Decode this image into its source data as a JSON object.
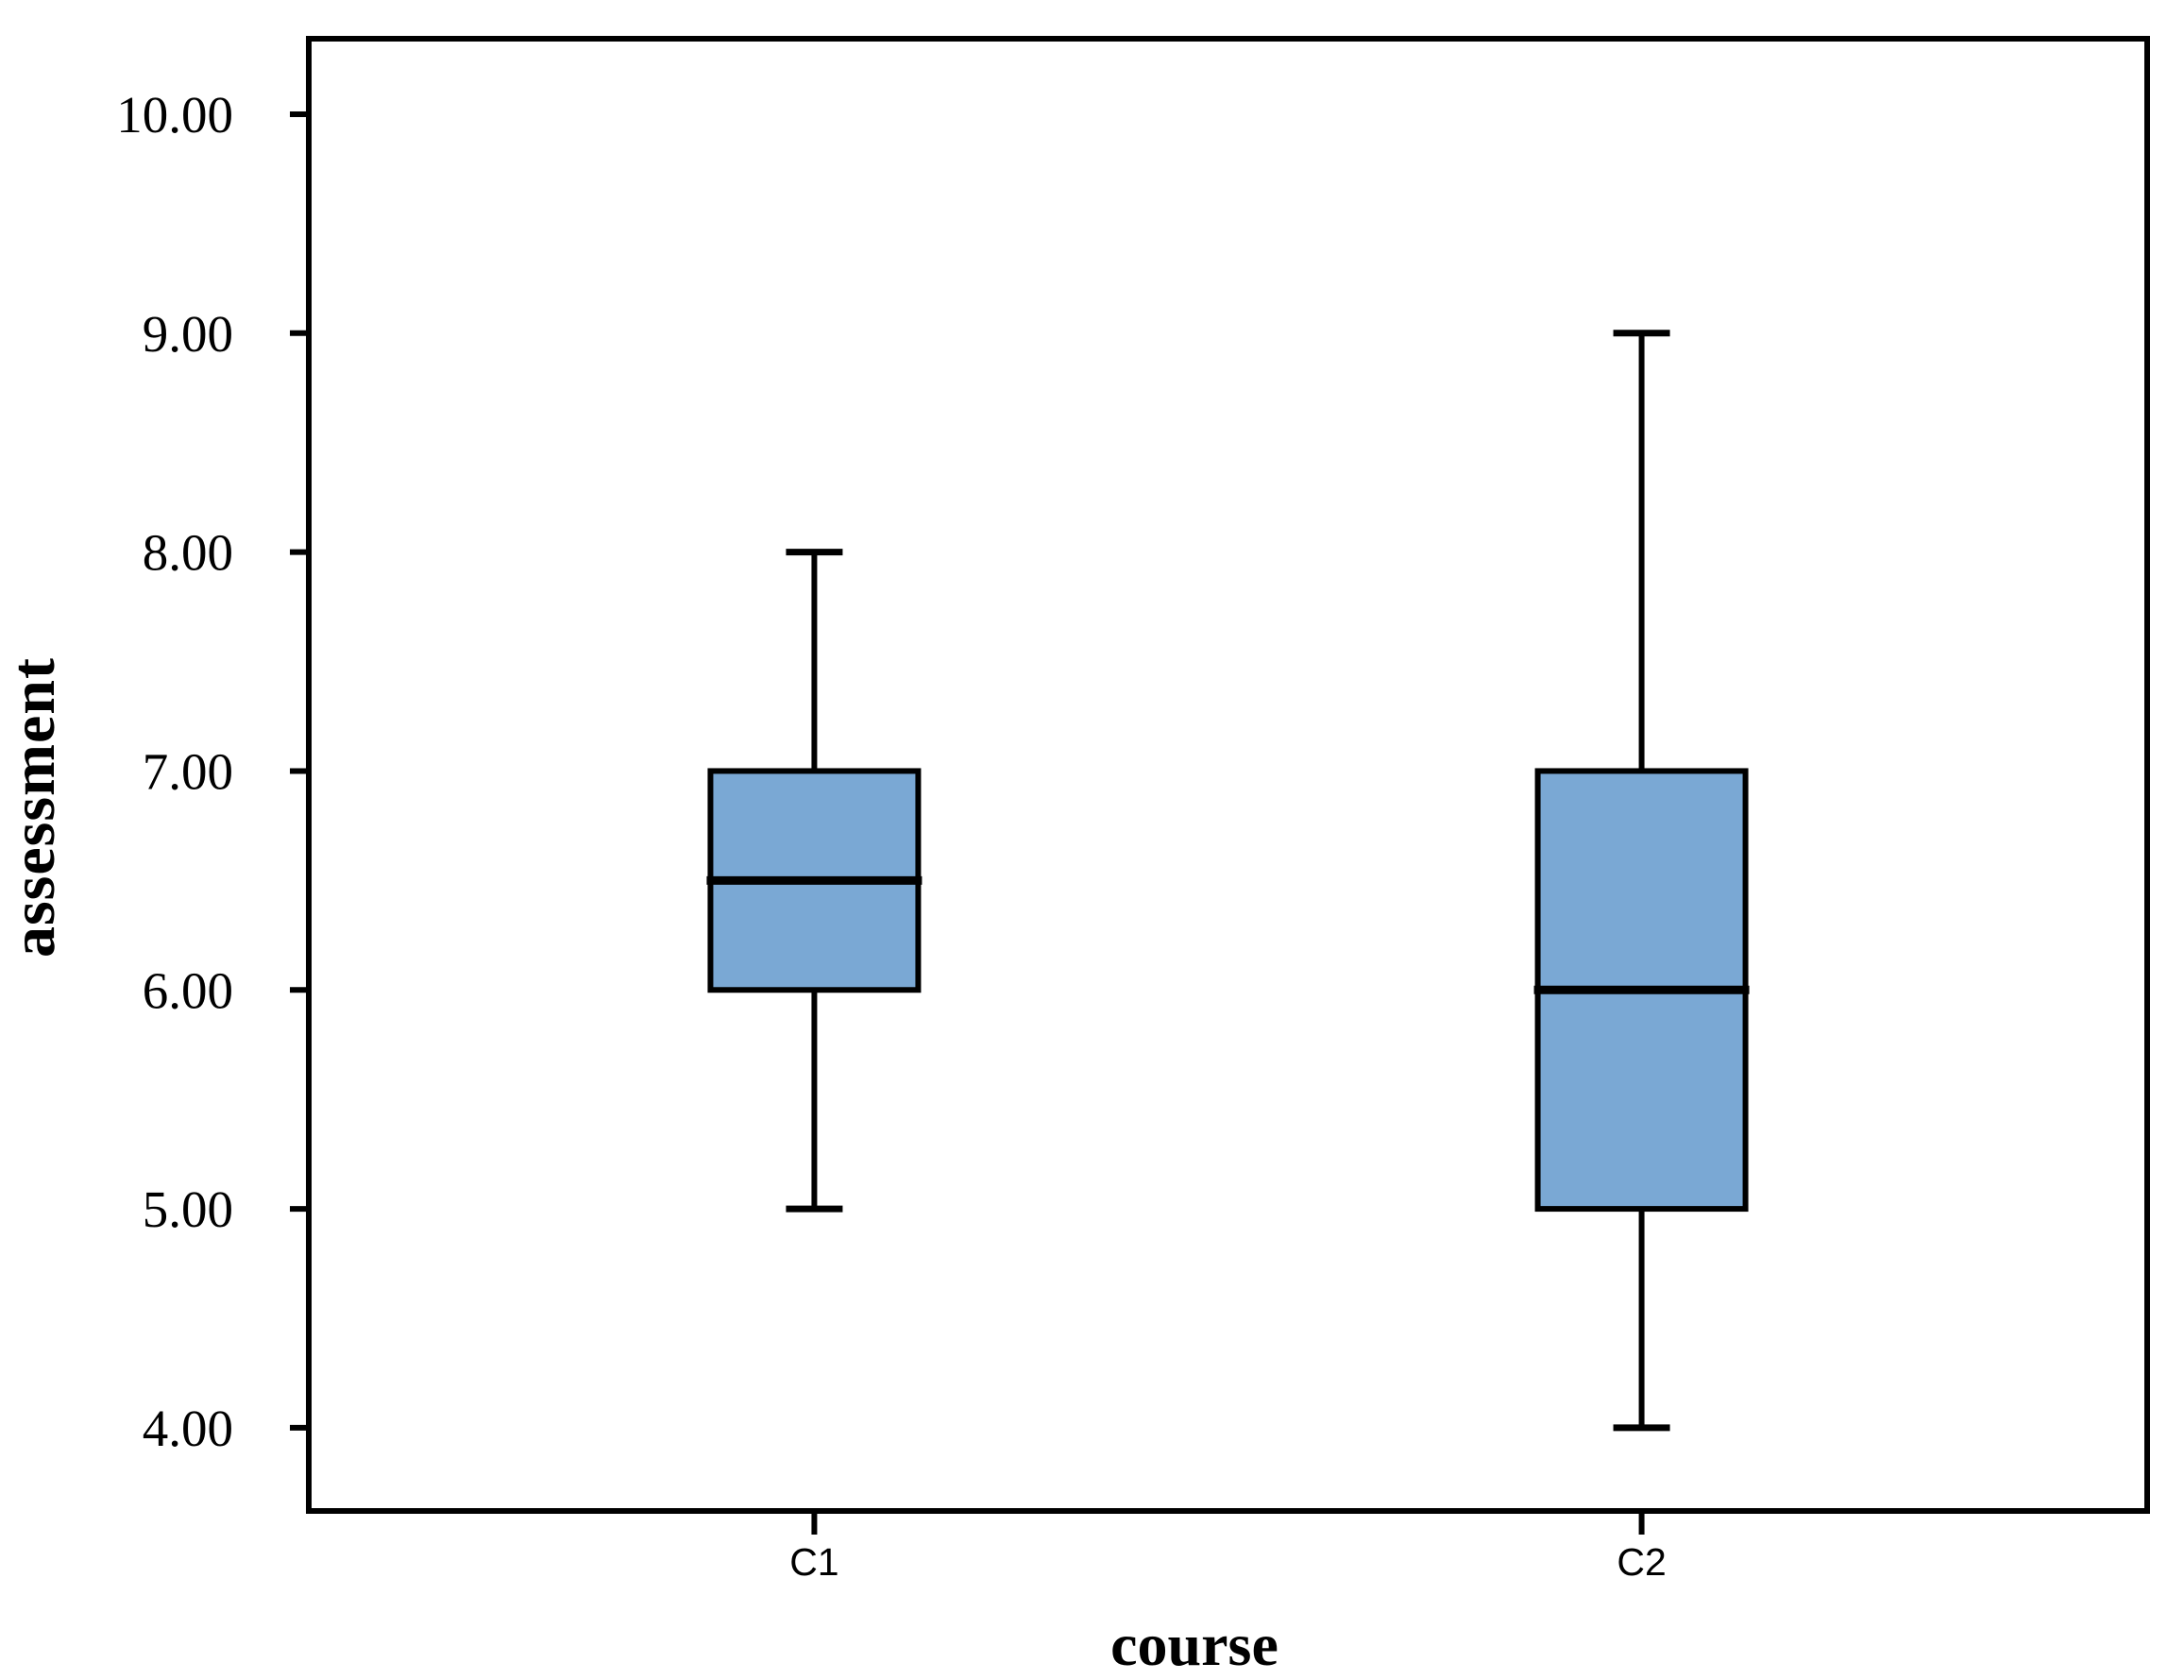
{
  "figure": {
    "background_color": "#FFFFFF",
    "line_color": "#000000",
    "box_fill_color": "#7AA8D4"
  },
  "chart_data": {
    "type": "boxplot",
    "title": "",
    "xlabel": "course",
    "ylabel": "assessment",
    "categories": [
      "C1",
      "C2"
    ],
    "series": [
      {
        "name": "C1",
        "min": 5.0,
        "q1": 6.0,
        "median": 6.5,
        "q3": 7.0,
        "max": 8.0
      },
      {
        "name": "C2",
        "min": 4.0,
        "q1": 5.0,
        "median": 6.0,
        "q3": 7.0,
        "max": 9.0
      }
    ],
    "ylim": [
      3.62,
      10.345
    ],
    "yticks": [
      4,
      5,
      6,
      7,
      8,
      9,
      10
    ],
    "ytick_labels": [
      "4.00",
      "5.00",
      "6.00",
      "7.00",
      "8.00",
      "9.00",
      "10.00"
    ],
    "xtick_labels": [
      "C1",
      "C2"
    ],
    "grid": false,
    "legend": null,
    "outliers": []
  }
}
